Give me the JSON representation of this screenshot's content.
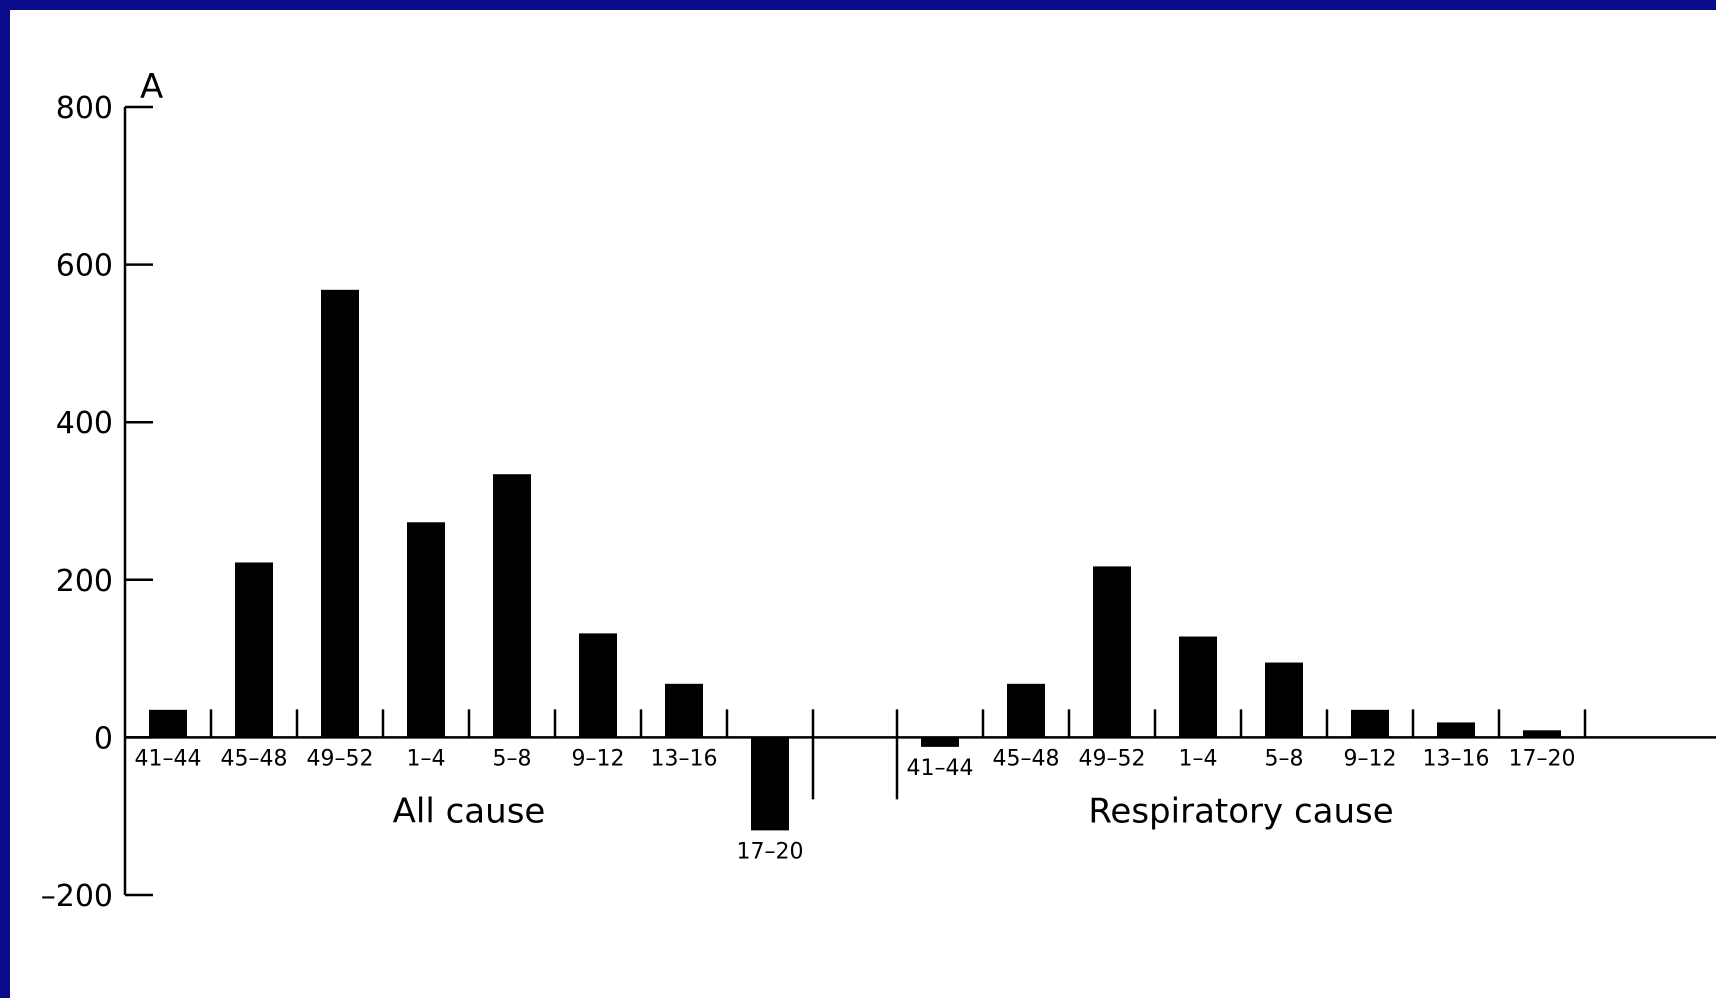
{
  "chart_data": {
    "type": "bar",
    "panel_label": "A",
    "title": "",
    "xlabel": "",
    "ylabel": "",
    "ylim": [
      -200,
      800
    ],
    "yticks": [
      -200,
      0,
      200,
      400,
      600,
      800
    ],
    "grid": false,
    "legend": "none",
    "bar_color": "#000000",
    "groups": [
      {
        "name": "All cause",
        "categories": [
          "41–44",
          "45–48",
          "49–52",
          "1–4",
          "5–8",
          "9–12",
          "13–16",
          "17–20"
        ],
        "values": [
          35,
          222,
          568,
          273,
          334,
          132,
          68,
          -118
        ]
      },
      {
        "name": "Respiratory cause",
        "categories": [
          "41–44",
          "45–48",
          "49–52",
          "1–4",
          "5–8",
          "9–12",
          "13–16",
          "17–20"
        ],
        "values": [
          -12,
          68,
          217,
          128,
          95,
          35,
          19,
          9
        ]
      }
    ]
  }
}
